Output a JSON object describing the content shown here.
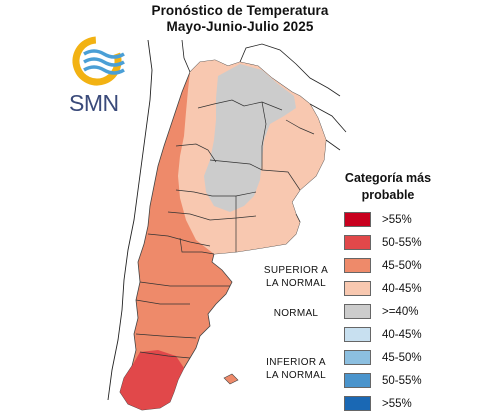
{
  "title": "Pronóstico de Temperatura",
  "subtitle": "Mayo-Junio-Julio 2025",
  "logo": {
    "text": "SMN",
    "ring_color": "#f2b213",
    "wave_color": "#4a9fd6"
  },
  "legend": {
    "title_line1": "Categoría más",
    "title_line2": "probable",
    "items": [
      {
        "label": ">55%",
        "color": "#c8001e"
      },
      {
        "label": "50-55%",
        "color": "#e1484a"
      },
      {
        "label": "45-50%",
        "color": "#ee8a6a"
      },
      {
        "label": "40-45%",
        "color": "#f8c8b0"
      },
      {
        "label": ">=40%",
        "color": "#cccccc"
      },
      {
        "label": "40-45%",
        "color": "#c8e0f0"
      },
      {
        "label": "45-50%",
        "color": "#8cbfe0"
      },
      {
        "label": "50-55%",
        "color": "#4a94cc"
      },
      {
        "label": ">55%",
        "color": "#1a68b4"
      }
    ]
  },
  "categories": {
    "above_line1": "SUPERIOR A",
    "above_line2": "LA NORMAL",
    "normal": "NORMAL",
    "below_line1": "INFERIOR A",
    "below_line2": "LA NORMAL"
  },
  "map_colors": {
    "above_low": "#f8c8b0",
    "above_mid": "#ee8a6a",
    "above_high": "#e1484a",
    "normal": "#cccccc",
    "border": "#222222",
    "chile": "#ffffff"
  }
}
